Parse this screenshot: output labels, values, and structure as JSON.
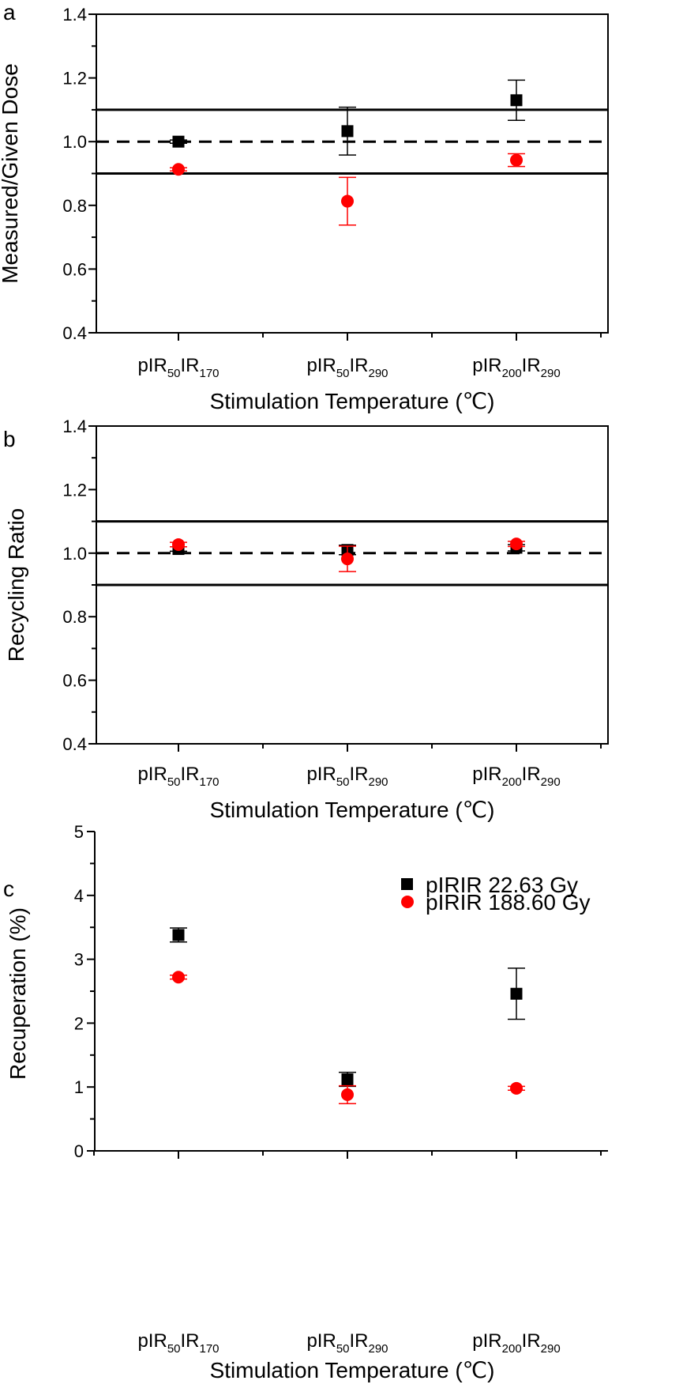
{
  "colors": {
    "series_1": "#000000",
    "series_2": "#ff0000",
    "axis": "#000000",
    "background": "#ffffff"
  },
  "categories": [
    {
      "label": "pIR50IR170",
      "base1": "pIR",
      "sub1": "50",
      "base2": "IR",
      "sub2": "170"
    },
    {
      "label": "pIR50IR290",
      "base1": "pIR",
      "sub1": "50",
      "base2": "IR",
      "sub2": "290"
    },
    {
      "label": "pIR200IR290",
      "base1": "pIR",
      "sub1": "200",
      "base2": "IR",
      "sub2": "290"
    }
  ],
  "legend": {
    "series_1": "pIRIR 22.63 Gy",
    "series_2": "pIRIR 188.60 Gy"
  },
  "chart_data": [
    {
      "panel": "a",
      "type": "scatter",
      "xlabel": "Stimulation Temperature (℃)",
      "ylabel": "Measured/Given Dose",
      "ylim": [
        0.4,
        1.4
      ],
      "yticks": [
        "0.4",
        "0.6",
        "0.8",
        "1.0",
        "1.2",
        "1.4"
      ],
      "grid": false,
      "reference_lines": [
        {
          "y": 1.1,
          "style": "solid"
        },
        {
          "y": 1.0,
          "style": "dashed"
        },
        {
          "y": 0.9,
          "style": "solid"
        }
      ],
      "series": [
        {
          "marker": "square",
          "values": [
            1.0,
            1.033,
            1.13
          ],
          "errors": [
            0.005,
            0.075,
            0.063
          ]
        },
        {
          "marker": "circle",
          "values": [
            0.913,
            0.813,
            0.942
          ],
          "errors": [
            0.005,
            0.075,
            0.02
          ]
        }
      ]
    },
    {
      "panel": "b",
      "type": "scatter",
      "xlabel": "Stimulation Temperature (℃)",
      "ylabel": "Recycling Ratio",
      "ylim": [
        0.4,
        1.4
      ],
      "yticks": [
        "0.4",
        "0.6",
        "0.8",
        "1.0",
        "1.2",
        "1.4"
      ],
      "grid": false,
      "reference_lines": [
        {
          "y": 1.1,
          "style": "solid"
        },
        {
          "y": 1.0,
          "style": "dashed"
        },
        {
          "y": 0.9,
          "style": "solid"
        }
      ],
      "series": [
        {
          "marker": "square",
          "values": [
            1.013,
            1.01,
            1.017
          ],
          "errors": [
            0.007,
            0.015,
            0.01
          ]
        },
        {
          "marker": "circle",
          "values": [
            1.027,
            0.982,
            1.029
          ],
          "errors": [
            0.007,
            0.04,
            0.008
          ]
        }
      ]
    },
    {
      "panel": "c",
      "type": "scatter",
      "xlabel": "Stimulation Temperature (℃)",
      "ylabel": "Recuperation (%)",
      "ylim": [
        0,
        5
      ],
      "yticks": [
        "0",
        "1",
        "2",
        "3",
        "4",
        "5"
      ],
      "grid": false,
      "legend_position": "top-right",
      "series": [
        {
          "name": "pIRIR 22.63 Gy",
          "marker": "square",
          "values": [
            3.38,
            1.12,
            2.46
          ],
          "errors": [
            0.11,
            0.11,
            0.4
          ]
        },
        {
          "name": "pIRIR 188.60 Gy",
          "marker": "circle",
          "values": [
            2.72,
            0.88,
            0.98
          ],
          "errors": [
            0.03,
            0.14,
            0.03
          ]
        }
      ]
    }
  ]
}
